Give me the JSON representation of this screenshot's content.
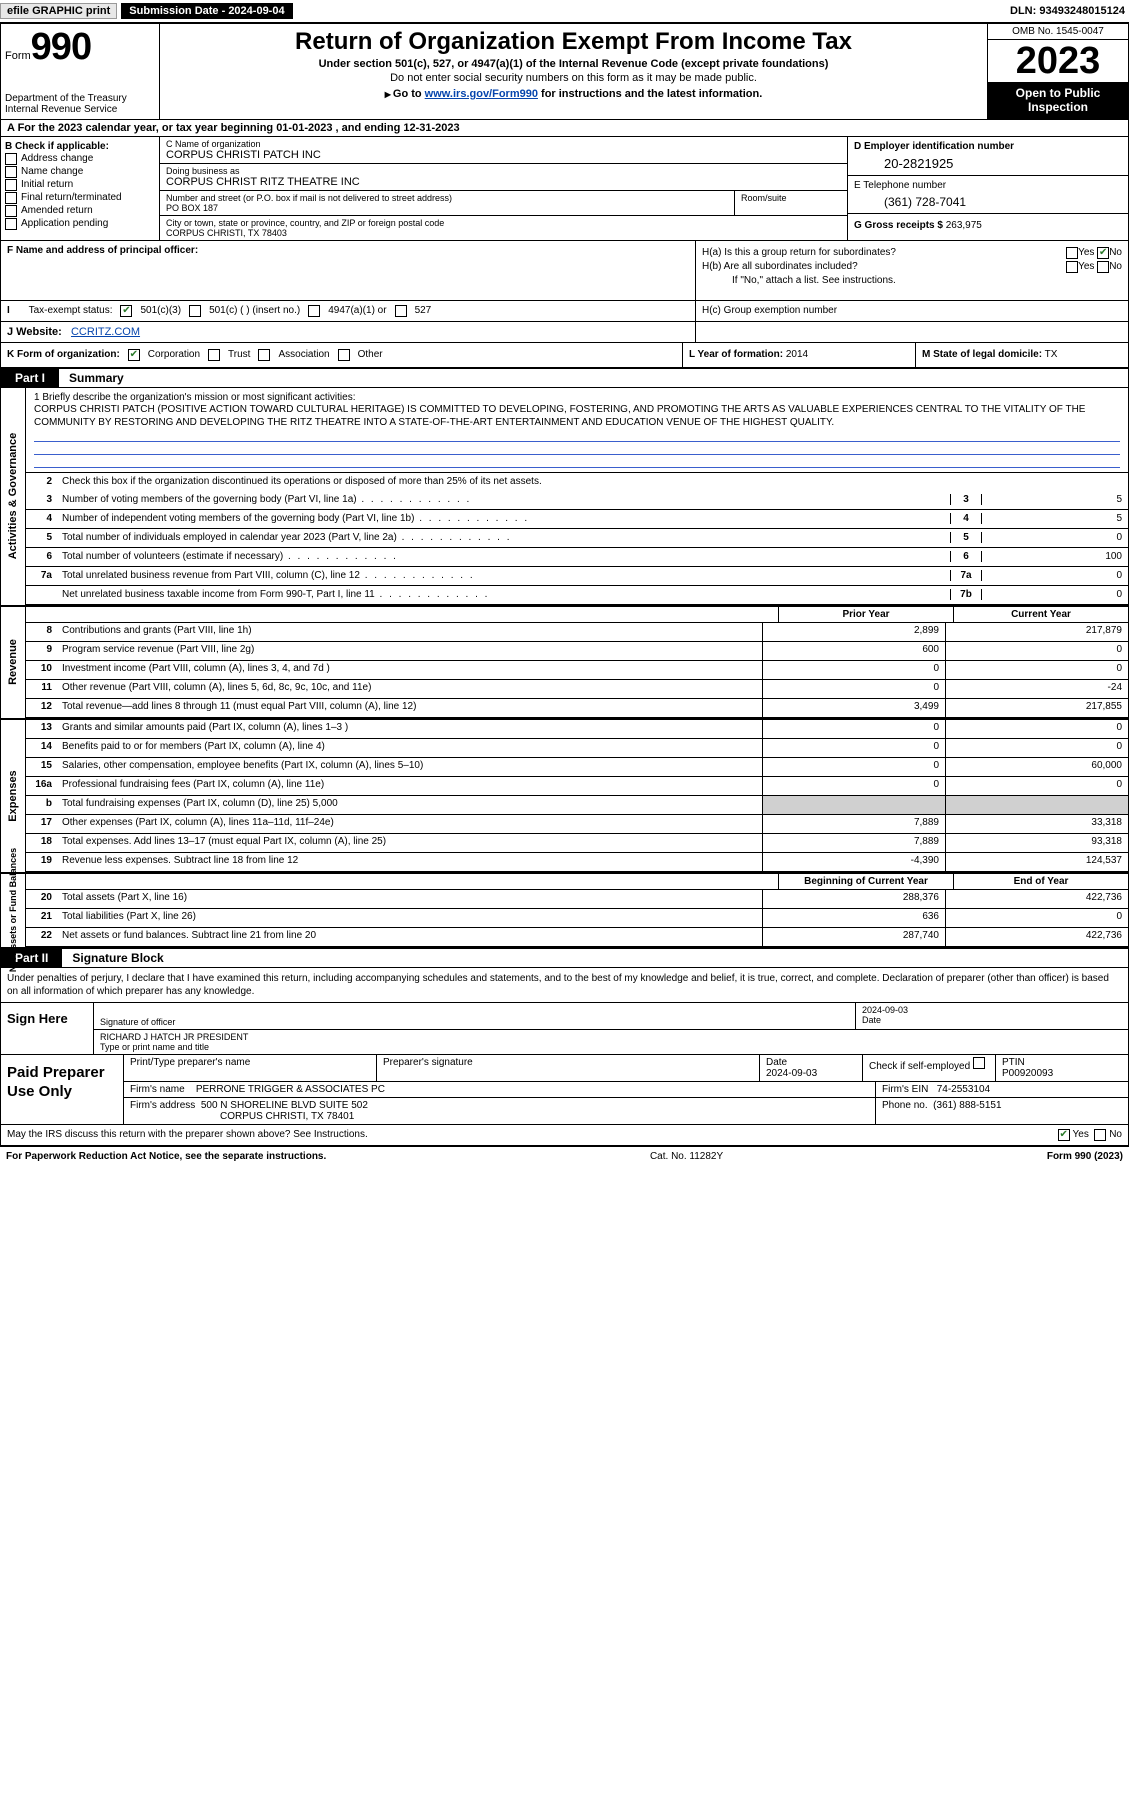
{
  "topbar": {
    "efile": "efile GRAPHIC print",
    "submission": "Submission Date - 2024-09-04",
    "dln": "DLN: 93493248015124"
  },
  "header": {
    "form_prefix": "Form",
    "form_number": "990",
    "dept": "Department of the Treasury Internal Revenue Service",
    "title": "Return of Organization Exempt From Income Tax",
    "subtitle": "Under section 501(c), 527, or 4947(a)(1) of the Internal Revenue Code (except private foundations)",
    "note": "Do not enter social security numbers on this form as it may be made public.",
    "goto_prefix": "Go to ",
    "goto_link": "www.irs.gov/Form990",
    "goto_suffix": " for instructions and the latest information.",
    "omb": "OMB No. 1545-0047",
    "year": "2023",
    "open": "Open to Public Inspection"
  },
  "lineA": "A For the 2023 calendar year, or tax year beginning 01-01-2023   , and ending 12-31-2023",
  "boxB": {
    "header": "B Check if applicable:",
    "opts": [
      "Address change",
      "Name change",
      "Initial return",
      "Final return/terminated",
      "Amended return",
      "Application pending"
    ]
  },
  "boxC": {
    "name_label": "C Name of organization",
    "name": "CORPUS CHRISTI PATCH INC",
    "dba_label": "Doing business as",
    "dba": "CORPUS CHRIST RITZ THEATRE INC",
    "street_label": "Number and street (or P.O. box if mail is not delivered to street address)",
    "street": "PO BOX 187",
    "room_label": "Room/suite",
    "city_label": "City or town, state or province, country, and ZIP or foreign postal code",
    "city": "CORPUS CHRISTI, TX  78403"
  },
  "boxD": {
    "ein_label": "D Employer identification number",
    "ein": "20-2821925",
    "tel_label": "E Telephone number",
    "tel": "(361) 728-7041",
    "gross_label": "G Gross receipts $",
    "gross": "263,975"
  },
  "boxF": {
    "label": "F  Name and address of principal officer:"
  },
  "boxH": {
    "ha": "H(a)  Is this a group return for subordinates?",
    "hb": "H(b)  Are all subordinates included?",
    "hb_note": "If \"No,\" attach a list. See instructions.",
    "hc": "H(c)  Group exemption number",
    "yes": "Yes",
    "no": "No"
  },
  "boxI": {
    "label": "Tax-exempt status:",
    "o1": "501(c)(3)",
    "o2": "501(c) (  ) (insert no.)",
    "o3": "4947(a)(1) or",
    "o4": "527"
  },
  "boxJ": {
    "label": "J   Website:",
    "value": "CCRITZ.COM"
  },
  "boxK": {
    "label": "K Form of organization:",
    "o1": "Corporation",
    "o2": "Trust",
    "o3": "Association",
    "o4": "Other"
  },
  "boxL": {
    "label": "L Year of formation:",
    "value": "2014"
  },
  "boxM": {
    "label": "M State of legal domicile:",
    "value": "TX"
  },
  "part1": {
    "tab": "Part I",
    "title": "Summary"
  },
  "mission": {
    "prompt": "1   Briefly describe the organization's mission or most significant activities:",
    "text": "CORPUS CHRISTI PATCH (POSITIVE ACTION TOWARD CULTURAL HERITAGE) IS COMMITTED TO DEVELOPING, FOSTERING, AND PROMOTING THE ARTS AS VALUABLE EXPERIENCES CENTRAL TO THE VITALITY OF THE COMMUNITY BY RESTORING AND DEVELOPING THE RITZ THEATRE INTO A STATE-OF-THE-ART ENTERTAINMENT AND EDUCATION VENUE OF THE HIGHEST QUALITY."
  },
  "gov": {
    "l2": "Check this box       if the organization discontinued its operations or disposed of more than 25% of its net assets.",
    "rows": [
      {
        "n": "3",
        "d": "Number of voting members of the governing body (Part VI, line 1a)",
        "k": "3",
        "v": "5"
      },
      {
        "n": "4",
        "d": "Number of independent voting members of the governing body (Part VI, line 1b)",
        "k": "4",
        "v": "5"
      },
      {
        "n": "5",
        "d": "Total number of individuals employed in calendar year 2023 (Part V, line 2a)",
        "k": "5",
        "v": "0"
      },
      {
        "n": "6",
        "d": "Total number of volunteers (estimate if necessary)",
        "k": "6",
        "v": "100"
      },
      {
        "n": "7a",
        "d": "Total unrelated business revenue from Part VIII, column (C), line 12",
        "k": "7a",
        "v": "0"
      },
      {
        "n": "",
        "d": "Net unrelated business taxable income from Form 990-T, Part I, line 11",
        "k": "7b",
        "v": "0"
      }
    ]
  },
  "colheads": {
    "prior": "Prior Year",
    "curr": "Current Year",
    "begin": "Beginning of Current Year",
    "end": "End of Year"
  },
  "revenue": [
    {
      "n": "8",
      "d": "Contributions and grants (Part VIII, line 1h)",
      "p": "2,899",
      "c": "217,879"
    },
    {
      "n": "9",
      "d": "Program service revenue (Part VIII, line 2g)",
      "p": "600",
      "c": "0"
    },
    {
      "n": "10",
      "d": "Investment income (Part VIII, column (A), lines 3, 4, and 7d )",
      "p": "0",
      "c": "0"
    },
    {
      "n": "11",
      "d": "Other revenue (Part VIII, column (A), lines 5, 6d, 8c, 9c, 10c, and 11e)",
      "p": "0",
      "c": "-24"
    },
    {
      "n": "12",
      "d": "Total revenue—add lines 8 through 11 (must equal Part VIII, column (A), line 12)",
      "p": "3,499",
      "c": "217,855"
    }
  ],
  "expenses": [
    {
      "n": "13",
      "d": "Grants and similar amounts paid (Part IX, column (A), lines 1–3 )",
      "p": "0",
      "c": "0"
    },
    {
      "n": "14",
      "d": "Benefits paid to or for members (Part IX, column (A), line 4)",
      "p": "0",
      "c": "0"
    },
    {
      "n": "15",
      "d": "Salaries, other compensation, employee benefits (Part IX, column (A), lines 5–10)",
      "p": "0",
      "c": "60,000"
    },
    {
      "n": "16a",
      "d": "Professional fundraising fees (Part IX, column (A), line 11e)",
      "p": "0",
      "c": "0"
    },
    {
      "n": "b",
      "d": "Total fundraising expenses (Part IX, column (D), line 25) 5,000",
      "p": "",
      "c": "",
      "grey": true
    },
    {
      "n": "17",
      "d": "Other expenses (Part IX, column (A), lines 11a–11d, 11f–24e)",
      "p": "7,889",
      "c": "33,318"
    },
    {
      "n": "18",
      "d": "Total expenses. Add lines 13–17 (must equal Part IX, column (A), line 25)",
      "p": "7,889",
      "c": "93,318"
    },
    {
      "n": "19",
      "d": "Revenue less expenses. Subtract line 18 from line 12",
      "p": "-4,390",
      "c": "124,537"
    }
  ],
  "netassets": [
    {
      "n": "20",
      "d": "Total assets (Part X, line 16)",
      "p": "288,376",
      "c": "422,736"
    },
    {
      "n": "21",
      "d": "Total liabilities (Part X, line 26)",
      "p": "636",
      "c": "0"
    },
    {
      "n": "22",
      "d": "Net assets or fund balances. Subtract line 21 from line 20",
      "p": "287,740",
      "c": "422,736"
    }
  ],
  "sidelabels": {
    "gov": "Activities & Governance",
    "rev": "Revenue",
    "exp": "Expenses",
    "net": "Net Assets or Fund Balances"
  },
  "part2": {
    "tab": "Part II",
    "title": "Signature Block"
  },
  "perjury": "Under penalties of perjury, I declare that I have examined this return, including accompanying schedules and statements, and to the best of my knowledge and belief, it is true, correct, and complete. Declaration of preparer (other than officer) is based on all information of which preparer has any knowledge.",
  "sign": {
    "left": "Sign Here",
    "sig_label": "Signature of officer",
    "date_label": "Date",
    "date": "2024-09-03",
    "name": "RICHARD J HATCH JR PRESIDENT",
    "name_label": "Type or print name and title"
  },
  "prep": {
    "left": "Paid Preparer Use Only",
    "h1": "Print/Type preparer's name",
    "h2": "Preparer's signature",
    "h3": "Date",
    "date": "2024-09-03",
    "h4": "Check        if self-employed",
    "h5": "PTIN",
    "ptin": "P00920093",
    "firm_label": "Firm's name",
    "firm": "PERRONE TRIGGER & ASSOCIATES PC",
    "ein_label": "Firm's EIN",
    "ein": "74-2553104",
    "addr_label": "Firm's address",
    "addr1": "500 N SHORELINE BLVD SUITE 502",
    "addr2": "CORPUS CHRISTI, TX  78401",
    "phone_label": "Phone no.",
    "phone": "(361) 888-5151"
  },
  "discuss": {
    "text": "May the IRS discuss this return with the preparer shown above? See Instructions.",
    "yes": "Yes",
    "no": "No"
  },
  "footer": {
    "left": "For Paperwork Reduction Act Notice, see the separate instructions.",
    "mid": "Cat. No. 11282Y",
    "right": "Form 990 (2023)"
  }
}
